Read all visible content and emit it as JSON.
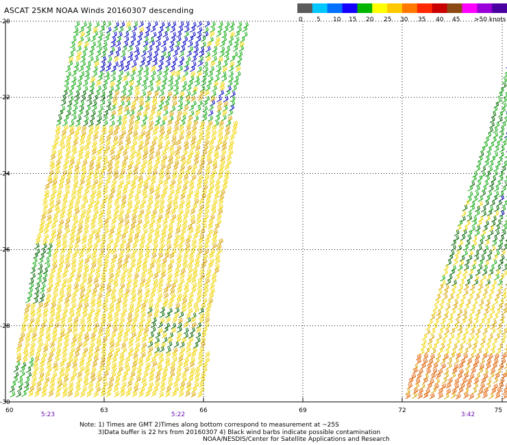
{
  "title": "ASCAT 25KM NOAA Winds 20160307 descending",
  "legend": {
    "labels": [
      "0",
      "5",
      "10",
      "15",
      "20",
      "25",
      "30",
      "35",
      "40",
      "45",
      ">50 knots"
    ],
    "colors": [
      "#5a5a5a",
      "#00c8ff",
      "#0070ff",
      "#1400ff",
      "#00b400",
      "#ffff00",
      "#ffc800",
      "#ff7800",
      "#ff2800",
      "#c80000",
      "#8b4a14",
      "#ff00ff",
      "#9a00d8",
      "#4a00a0"
    ]
  },
  "axes": {
    "lat_labels": [
      "-20",
      "-22",
      "-24",
      "-26",
      "-28",
      "-30"
    ],
    "lon_labels": [
      "60",
      "63",
      "66",
      "69",
      "72",
      "75"
    ]
  },
  "pass_times": [
    "5:23",
    "5:22",
    "3:42"
  ],
  "notes": [
    "Note: 1) Times are GMT 2)Times along bottom correspond to measurement at ~25S",
    "3)Data buffer is 22 hrs from 20160307 4) Black wind barbs indicate possible contamination",
    "NOAA/NESDIS/Center for Satellite Applications and Research"
  ],
  "colors": {
    "yellow": "#f0d400",
    "gold": "#d9a400",
    "green": "#11aa11",
    "dark_green": "#006400",
    "blue": "#0000c0",
    "orange": "#e06000",
    "time_label": "#6a0dad"
  }
}
